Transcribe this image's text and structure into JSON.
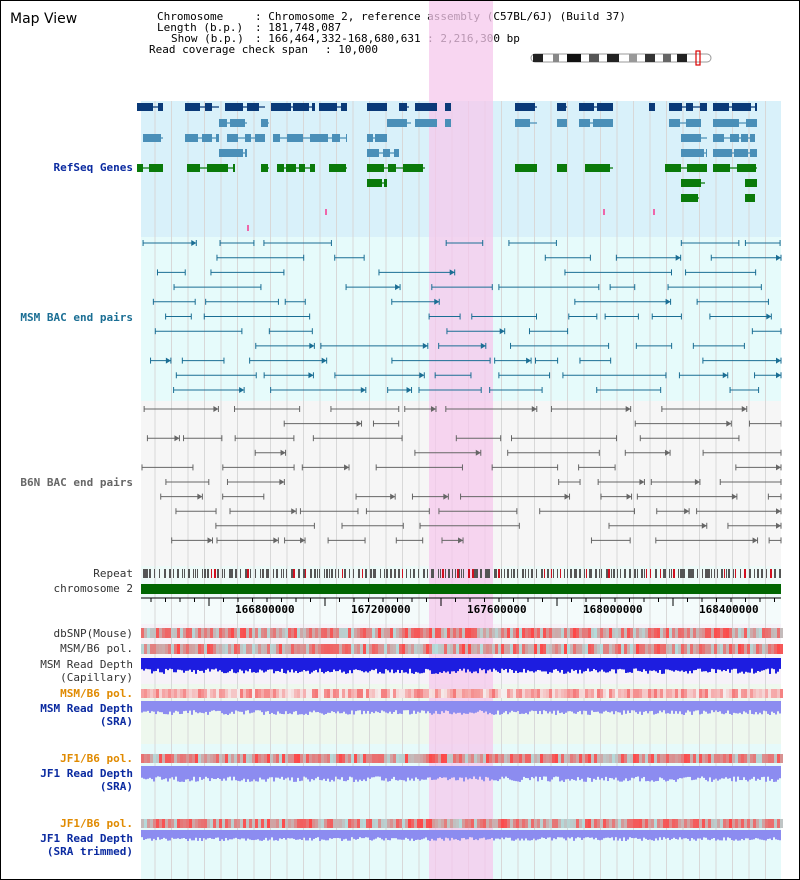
{
  "title": "Map View",
  "info": {
    "chromosome_key": "Chromosome",
    "chromosome_val": ": Chromosome 2, reference assembly (C57BL/6J) (Build 37)",
    "length_key": "Length (b.p.)",
    "length_val": ": 181,748,087",
    "show_key": "Show (b.p.)",
    "show_val": ": 166,464,332-168,680,631 : 2,216,300 bp",
    "coverage_key": "Read coverage check span",
    "coverage_val": ": 10,000"
  },
  "tracks": {
    "refseq": "RefSeq Genes",
    "msm_bac": "MSM BAC end pairs",
    "b6n_bac": "B6N BAC end pairs",
    "repeat": "Repeat",
    "chromosome": "chromosome 2",
    "dbsnp": "dbSNP(Mouse)",
    "msm_pol": "MSM/B6 pol.",
    "msm_depth_cap_1": "MSM Read Depth",
    "msm_depth_cap_2": "(Capillary)",
    "msm_pol_2": "MSM/B6 pol.",
    "msm_depth_sra_1": "MSM Read Depth",
    "msm_depth_sra_2": "(SRA)",
    "jf1_pol": "JF1/B6 pol.",
    "jf1_depth_1": "JF1 Read Depth",
    "jf1_depth_2": "(SRA)",
    "jf1_pol_2": "JF1/B6 pol.",
    "jf1_trim_1": "JF1 Read Depth",
    "jf1_trim_2": "(SRA trimmed)"
  },
  "axis": {
    "ticks": [
      "166800000",
      "167200000",
      "167600000",
      "168000000",
      "168400000"
    ]
  },
  "colors": {
    "refseq_bg": "#d9f1fa",
    "refseq_dark": "#0a3a78",
    "refseq_mid": "#4a8fb8",
    "refseq_green": "#0a7a0a",
    "msm_bg": "#e6fbfb",
    "msm_line": "#1a6e94",
    "b6n_bg": "#f6f6f6",
    "b6n_line": "#666666",
    "highlight": "#f5c8ec",
    "repeat": "#555555",
    "repeat_red": "#d01020",
    "chrom": "#006600",
    "snp_red": "#ef4444",
    "depth_blue": "#1d1de0",
    "depth_light": "#8c8cf0",
    "label_blue": "#0a2aa0",
    "label_orange": "#e08a00"
  }
}
